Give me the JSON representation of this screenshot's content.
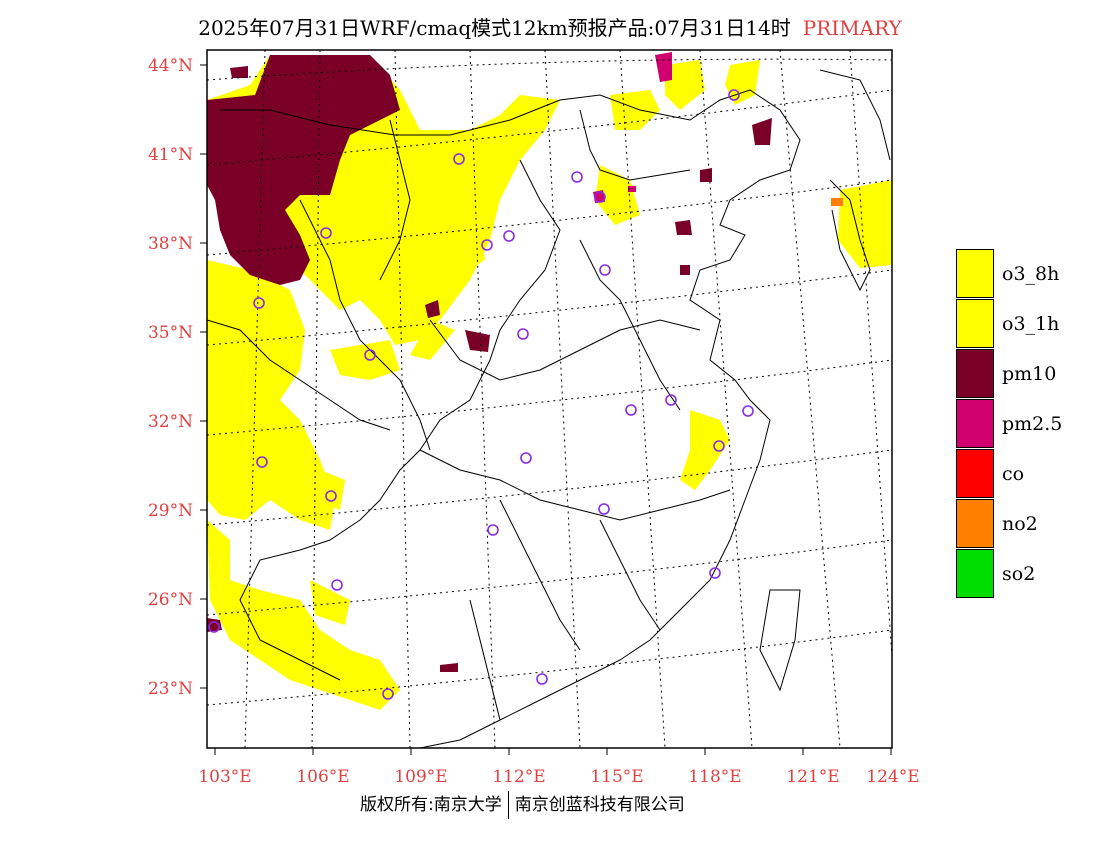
{
  "title": {
    "main": "2025年07月31日WRF/cmaq模式12km预报产品:07月31日14时",
    "tag": "PRIMARY"
  },
  "axes": {
    "lat_labels": [
      "44°N",
      "41°N",
      "38°N",
      "35°N",
      "32°N",
      "29°N",
      "26°N",
      "23°N"
    ],
    "lon_labels": [
      "103°E",
      "106°E",
      "109°E",
      "112°E",
      "115°E",
      "118°E",
      "121°E",
      "124°E"
    ],
    "label_color": "#e04040"
  },
  "legend": {
    "items": [
      {
        "label": "o3_8h",
        "color": "#ffff00"
      },
      {
        "label": "o3_1h",
        "color": "#ffff00"
      },
      {
        "label": "pm10",
        "color": "#7a0028"
      },
      {
        "label": "pm2.5",
        "color": "#d0006e"
      },
      {
        "label": "co",
        "color": "#ff0000"
      },
      {
        "label": "no2",
        "color": "#ff8000"
      },
      {
        "label": "so2",
        "color": "#00dd00"
      }
    ]
  },
  "footer": {
    "left": "版权所有:南京大学",
    "right": "南京创蓝科技有限公司"
  }
}
